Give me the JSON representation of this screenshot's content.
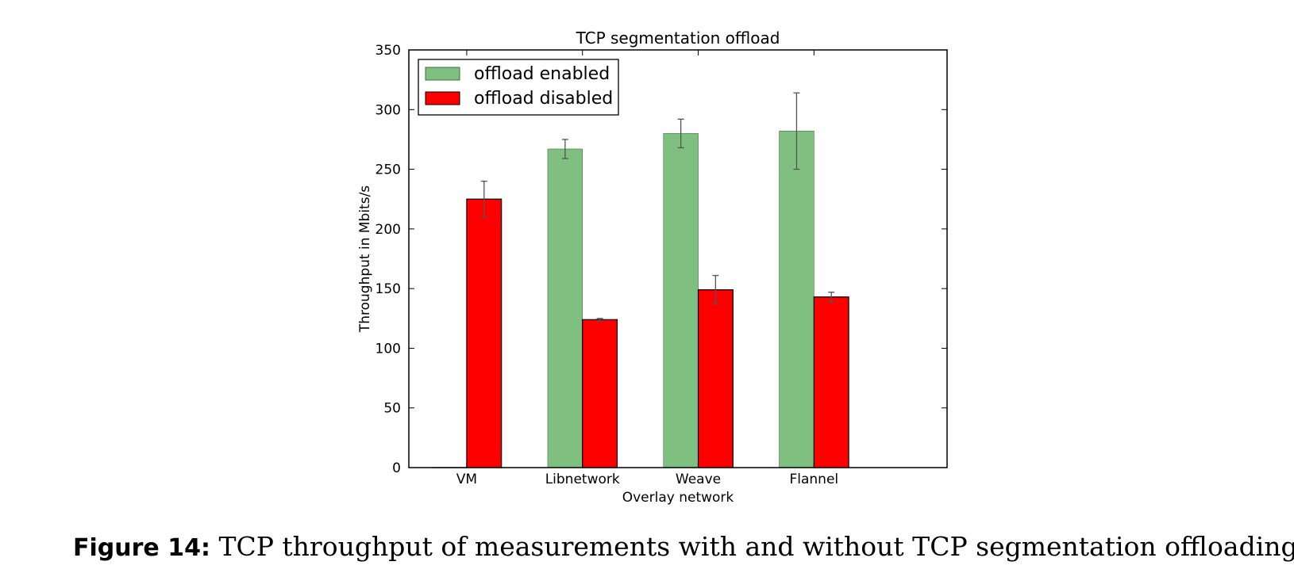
{
  "chart_data": {
    "type": "bar",
    "title": "TCP segmentation offload",
    "xlabel": "Overlay network",
    "ylabel": "Throughput in Mbits/s",
    "categories": [
      "VM",
      "Libnetwork",
      "Weave",
      "Flannel"
    ],
    "ylim": [
      0,
      350
    ],
    "yticks": [
      "0",
      "50",
      "100",
      "150",
      "200",
      "250",
      "300",
      "350"
    ],
    "grid": false,
    "legend_position": "upper-left",
    "series": [
      {
        "name": "offload enabled",
        "color": "#7fbf7f",
        "values": [
          0,
          267,
          280,
          282
        ],
        "errors": [
          0,
          8,
          12,
          32
        ]
      },
      {
        "name": "offload disabled",
        "color": "#ff0000",
        "values": [
          225,
          124,
          149,
          143
        ],
        "errors": [
          15,
          1,
          12,
          4
        ]
      }
    ]
  },
  "caption": {
    "label": "Figure 14:",
    "text": "TCP throughput of measurements with and without TCP segmentation offloading."
  }
}
